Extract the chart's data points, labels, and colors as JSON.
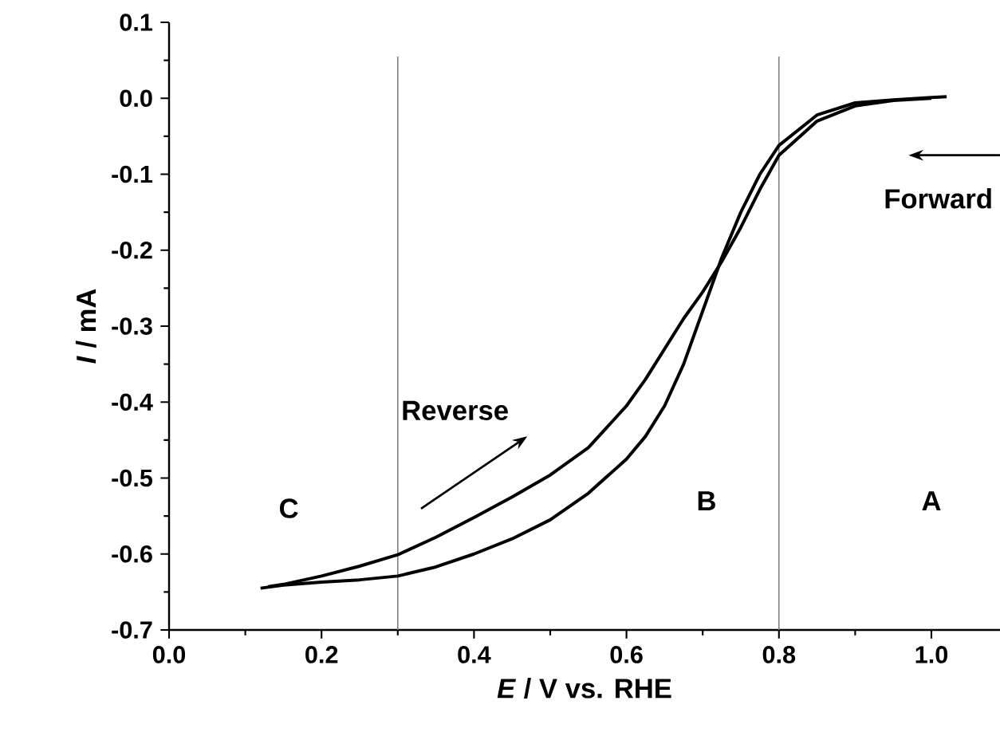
{
  "chart_data": {
    "type": "line",
    "xlabel": "*E* / V vs. RHE",
    "ylabel": "*I* / mA",
    "xlim": [
      0,
      1.09
    ],
    "ylim": [
      -0.7,
      0.1
    ],
    "xticks": [
      {
        "value": 0,
        "label": "0.0"
      },
      0.2,
      0.4,
      0.6,
      0.8,
      {
        "value": 1,
        "label": "1.0"
      }
    ],
    "yticks": [
      {
        "value": -0.7,
        "label": "-0.7"
      },
      {
        "value": -0.6,
        "label": "-0.6"
      },
      {
        "value": -0.5,
        "label": "-0.5"
      },
      {
        "value": -0.4,
        "label": "-0.4"
      },
      {
        "value": -0.3,
        "label": "-0.3"
      },
      {
        "value": -0.2,
        "label": "-0.2"
      },
      {
        "value": -0.1,
        "label": "-0.1"
      },
      {
        "value": 0,
        "label": "0.0"
      },
      {
        "value": 0.1,
        "label": "0.1"
      }
    ],
    "grid": false,
    "marker": "none",
    "line_style": "solid",
    "series": [
      {
        "color": "#000000",
        "x": [
          1.02,
          1.0,
          0.95,
          0.9,
          0.85,
          0.8,
          0.775,
          0.75,
          0.725,
          0.7,
          0.675,
          0.65,
          0.625,
          0.6,
          0.55,
          0.5,
          0.45,
          0.4,
          0.35,
          0.3,
          0.25,
          0.2,
          0.15,
          0.12
        ],
        "values": [
          0.002,
          0.001,
          -0.002,
          -0.006,
          -0.022,
          -0.062,
          -0.1,
          -0.15,
          -0.21,
          -0.28,
          -0.35,
          -0.405,
          -0.445,
          -0.475,
          -0.52,
          -0.555,
          -0.58,
          -0.6,
          -0.617,
          -0.629,
          -0.634,
          -0.637,
          -0.641,
          -0.645
        ]
      },
      {
        "color": "#000000",
        "x": [
          0.13,
          0.15,
          0.2,
          0.25,
          0.3,
          0.35,
          0.4,
          0.45,
          0.5,
          0.55,
          0.6,
          0.625,
          0.65,
          0.675,
          0.7,
          0.725,
          0.75,
          0.775,
          0.8,
          0.85,
          0.9,
          0.95,
          1.0
        ],
        "values": [
          -0.643,
          -0.64,
          -0.629,
          -0.616,
          -0.601,
          -0.578,
          -0.552,
          -0.525,
          -0.496,
          -0.46,
          -0.405,
          -0.37,
          -0.33,
          -0.29,
          -0.255,
          -0.215,
          -0.17,
          -0.12,
          -0.075,
          -0.03,
          -0.01,
          -0.003,
          0.0
        ]
      }
    ],
    "ref_lines": [
      {
        "axis": "x",
        "value": 0.3,
        "color": "#808080"
      },
      {
        "axis": "x",
        "value": 0.8,
        "color": "#808080"
      }
    ],
    "annotations": [
      "Reverse",
      "Forward",
      "A",
      "B",
      "C"
    ]
  }
}
